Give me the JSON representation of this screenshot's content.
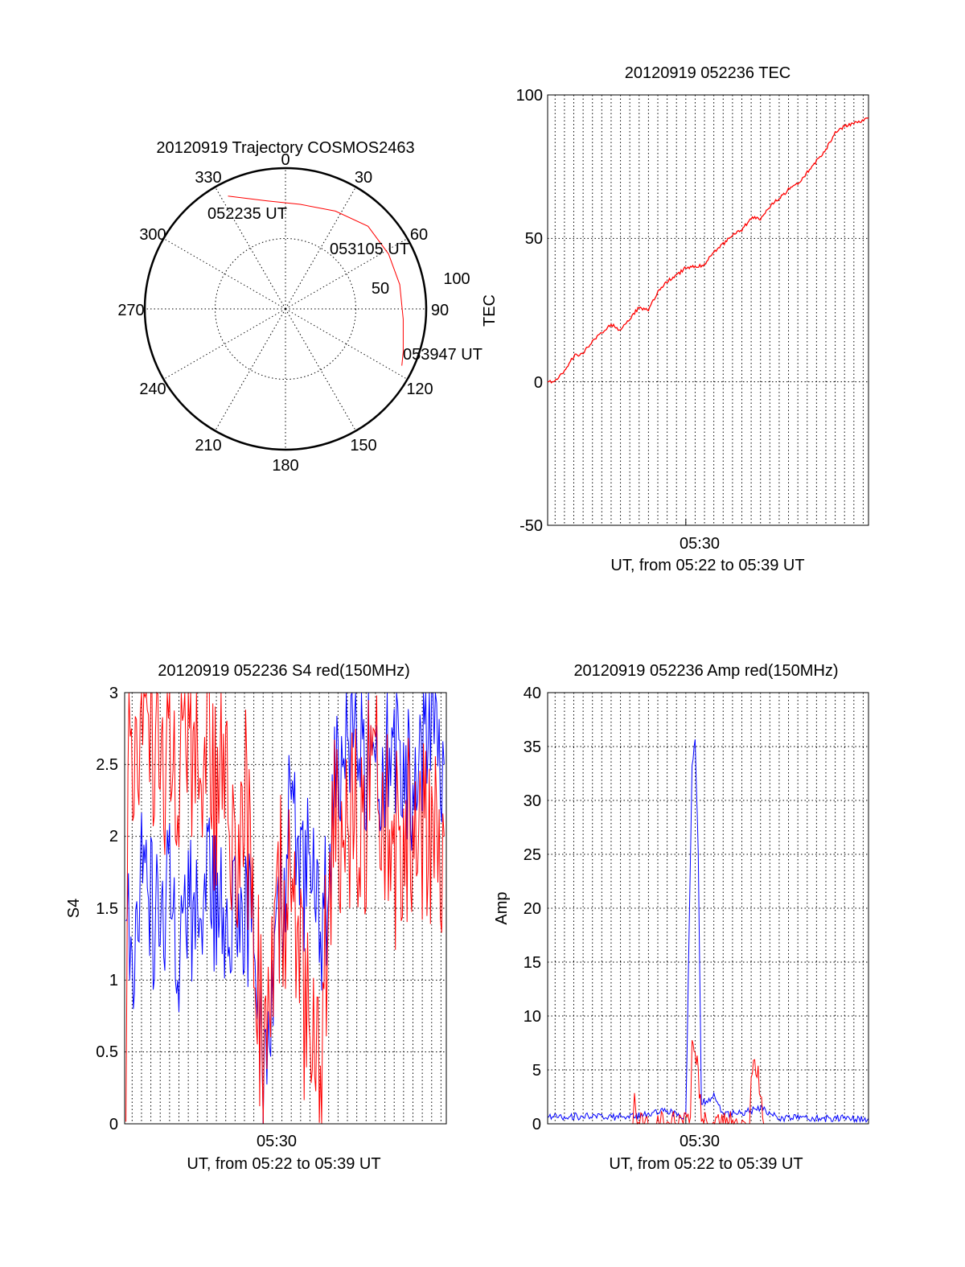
{
  "chart_data": [
    {
      "id": "trajectory",
      "type": "polar",
      "title": "20120919 Trajectory COSMOS2463",
      "azimuth_ticks": [
        "0",
        "30",
        "60",
        "90",
        "120",
        "150",
        "180",
        "210",
        "240",
        "270",
        "300",
        "330"
      ],
      "radial_ticks": [
        "50",
        "100"
      ],
      "radial_range": [
        0,
        100
      ],
      "grid": true,
      "series": [
        {
          "color": "#ff0000",
          "points": [
            {
              "az": 333,
              "r": 90
            },
            {
              "az": 350,
              "r": 78
            },
            {
              "az": 8,
              "r": 75
            },
            {
              "az": 27,
              "r": 78
            },
            {
              "az": 45,
              "r": 83
            },
            {
              "az": 62,
              "r": 83
            },
            {
              "az": 78,
              "r": 83
            },
            {
              "az": 95,
              "r": 84
            },
            {
              "az": 110,
              "r": 89
            },
            {
              "az": 116,
              "r": 92
            }
          ]
        }
      ],
      "annotations": [
        "052235 UT",
        "053105 UT",
        "053947 UT"
      ]
    },
    {
      "id": "tec",
      "type": "line",
      "title": "20120919 052236 TEC",
      "ylabel": "TEC",
      "xtick_label": "05:30",
      "xlabel": "UT, from 05:22 to 05:39 UT",
      "yticks": [
        "100",
        "50",
        "0",
        "-50"
      ],
      "ylim": [
        -50,
        100
      ],
      "xlim": [
        "05:22:36",
        "05:39:47"
      ],
      "grid": true,
      "series": [
        {
          "color": "#ff0000",
          "points": [
            [
              "05:22:36",
              0
            ],
            [
              "05:23:00",
              0
            ],
            [
              "05:23:30",
              4
            ],
            [
              "05:24:00",
              9
            ],
            [
              "05:24:30",
              10
            ],
            [
              "05:25:00",
              14
            ],
            [
              "05:25:30",
              17
            ],
            [
              "05:26:00",
              20
            ],
            [
              "05:26:30",
              18
            ],
            [
              "05:27:00",
              22
            ],
            [
              "05:27:30",
              26
            ],
            [
              "05:28:00",
              25
            ],
            [
              "05:28:30",
              31
            ],
            [
              "05:29:00",
              35
            ],
            [
              "05:29:30",
              37
            ],
            [
              "05:30:00",
              40
            ],
            [
              "05:30:30",
              40
            ],
            [
              "05:31:00",
              41
            ],
            [
              "05:31:30",
              45
            ],
            [
              "05:32:00",
              48
            ],
            [
              "05:32:30",
              51
            ],
            [
              "05:33:00",
              53
            ],
            [
              "05:33:30",
              57
            ],
            [
              "05:34:00",
              57
            ],
            [
              "05:34:30",
              61
            ],
            [
              "05:35:00",
              64
            ],
            [
              "05:35:30",
              67
            ],
            [
              "05:36:00",
              69
            ],
            [
              "05:36:30",
              73
            ],
            [
              "05:37:00",
              77
            ],
            [
              "05:37:30",
              81
            ],
            [
              "05:38:00",
              87
            ],
            [
              "05:38:30",
              89
            ],
            [
              "05:39:00",
              90
            ],
            [
              "05:39:47",
              92
            ]
          ]
        }
      ]
    },
    {
      "id": "s4",
      "type": "line",
      "title": "20120919 052236 S4 red(150MHz)",
      "ylabel": "S4",
      "xtick_label": "05:30",
      "xlabel": "UT, from 05:22 to 05:39 UT",
      "yticks": [
        "3",
        "2.5",
        "2",
        "1.5",
        "1",
        "0.5",
        "0"
      ],
      "ylim": [
        0,
        3
      ],
      "xlim": [
        "05:22:36",
        "05:39:47"
      ],
      "grid": true,
      "series": [
        {
          "color": "#0000ff",
          "points": [
            [
              "05:22:40",
              1.4
            ],
            [
              "05:23:00",
              1.2
            ],
            [
              "05:23:30",
              1.7
            ],
            [
              "05:24:00",
              1.5
            ],
            [
              "05:24:30",
              1.3
            ],
            [
              "05:25:00",
              1.9
            ],
            [
              "05:25:30",
              1.2
            ],
            [
              "05:26:00",
              1.6
            ],
            [
              "05:26:30",
              1.3
            ],
            [
              "05:27:00",
              1.8
            ],
            [
              "05:27:30",
              1.5
            ],
            [
              "05:28:00",
              1.3
            ],
            [
              "05:28:30",
              1.8
            ],
            [
              "05:29:00",
              1.4
            ],
            [
              "05:29:30",
              1.6
            ],
            [
              "05:30:00",
              0.25
            ],
            [
              "05:30:20",
              0.3
            ],
            [
              "05:30:40",
              1.2
            ],
            [
              "05:31:00",
              1.5
            ],
            [
              "05:31:30",
              2.2
            ],
            [
              "05:32:00",
              1.6
            ],
            [
              "05:32:30",
              1.8
            ],
            [
              "05:33:00",
              1.3
            ],
            [
              "05:33:30",
              1.6
            ],
            [
              "05:34:00",
              2.6
            ],
            [
              "05:35:00",
              2.8
            ],
            [
              "05:36:00",
              2.3
            ],
            [
              "05:37:00",
              2.7
            ],
            [
              "05:38:00",
              2.4
            ],
            [
              "05:39:00",
              2.8
            ],
            [
              "05:39:40",
              2.5
            ]
          ]
        },
        {
          "color": "#ff0000",
          "points": [
            [
              "05:22:40",
              0.0
            ],
            [
              "05:22:50",
              2.8
            ],
            [
              "05:23:30",
              2.6
            ],
            [
              "05:24:00",
              2.9
            ],
            [
              "05:24:30",
              2.4
            ],
            [
              "05:25:00",
              2.8
            ],
            [
              "05:25:30",
              2.5
            ],
            [
              "05:26:00",
              2.9
            ],
            [
              "05:26:30",
              2.3
            ],
            [
              "05:27:00",
              2.7
            ],
            [
              "05:27:30",
              2.2
            ],
            [
              "05:28:00",
              2.6
            ],
            [
              "05:28:30",
              2.0
            ],
            [
              "05:29:00",
              2.4
            ],
            [
              "05:29:30",
              1.5
            ],
            [
              "05:30:00",
              0.3
            ],
            [
              "05:30:20",
              0.45
            ],
            [
              "05:30:40",
              1.3
            ],
            [
              "05:31:00",
              1.6
            ],
            [
              "05:31:30",
              1.4
            ],
            [
              "05:32:00",
              1.0
            ],
            [
              "05:32:30",
              0.5
            ],
            [
              "05:33:00",
              0.25
            ],
            [
              "05:33:30",
              1.5
            ],
            [
              "05:34:00",
              2.2
            ],
            [
              "05:35:00",
              2.0
            ],
            [
              "05:36:00",
              2.4
            ],
            [
              "05:37:00",
              1.9
            ],
            [
              "05:38:00",
              2.2
            ],
            [
              "05:39:00",
              1.8
            ],
            [
              "05:39:40",
              2.0
            ]
          ]
        }
      ]
    },
    {
      "id": "amp",
      "type": "line",
      "title": "20120919 052236 Amp red(150MHz)",
      "ylabel": "Amp",
      "xtick_label": "05:30",
      "xlabel": "UT, from 05:22 to 05:39 UT",
      "yticks": [
        "40",
        "35",
        "30",
        "25",
        "20",
        "15",
        "10",
        "5",
        "0"
      ],
      "ylim": [
        0,
        40
      ],
      "xlim": [
        "05:22:36",
        "05:39:47"
      ],
      "grid": true,
      "series": [
        {
          "color": "#0000ff",
          "points": [
            [
              "05:22:36",
              0.6
            ],
            [
              "05:24:00",
              0.7
            ],
            [
              "05:26:00",
              0.6
            ],
            [
              "05:28:00",
              0.8
            ],
            [
              "05:29:00",
              1.2
            ],
            [
              "05:30:00",
              0.6
            ],
            [
              "05:30:20",
              33
            ],
            [
              "05:30:30",
              35.5
            ],
            [
              "05:30:40",
              25
            ],
            [
              "05:30:50",
              2
            ],
            [
              "05:31:30",
              2.5
            ],
            [
              "05:32:00",
              0.8
            ],
            [
              "05:33:00",
              1.0
            ],
            [
              "05:34:00",
              1.5
            ],
            [
              "05:35:00",
              0.6
            ],
            [
              "05:36:00",
              0.5
            ],
            [
              "05:38:00",
              0.5
            ],
            [
              "05:39:47",
              0.5
            ]
          ]
        },
        {
          "color": "#ff0000",
          "points": [
            [
              "05:27:10",
              0.0
            ],
            [
              "05:27:15",
              3.0
            ],
            [
              "05:27:20",
              0.0
            ],
            [
              "05:30:15",
              0.0
            ],
            [
              "05:30:20",
              8.0
            ],
            [
              "05:30:30",
              7.0
            ],
            [
              "05:30:40",
              5.0
            ],
            [
              "05:30:50",
              0.0
            ],
            [
              "05:33:25",
              0.0
            ],
            [
              "05:33:30",
              4.5
            ],
            [
              "05:33:45",
              5.5
            ],
            [
              "05:34:00",
              3.0
            ],
            [
              "05:34:10",
              0.0
            ]
          ]
        }
      ]
    }
  ]
}
